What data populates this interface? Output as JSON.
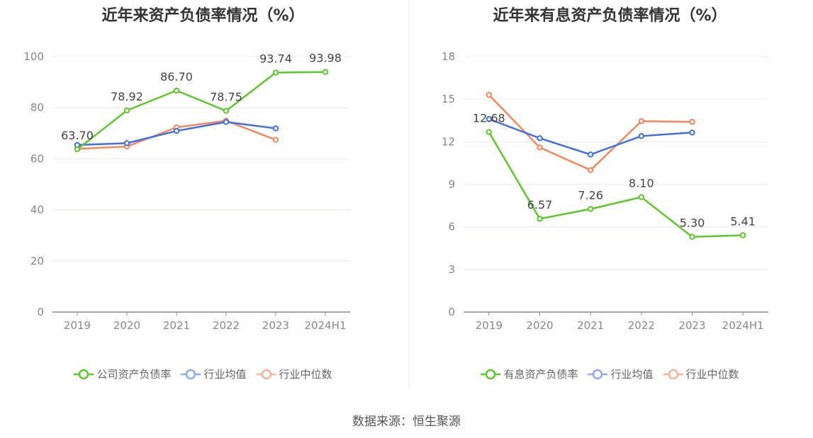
{
  "chart_data": [
    {
      "type": "line",
      "title": "近年来资产负债率情况（%）",
      "categories": [
        "2019",
        "2020",
        "2021",
        "2022",
        "2023",
        "2024H1"
      ],
      "ylim": [
        0,
        100
      ],
      "yticks": [
        "0",
        "20",
        "40",
        "60",
        "80",
        "100"
      ],
      "grid": true,
      "legend_position": "bottom",
      "series": [
        {
          "name": "公司资产负债率",
          "color": "#5cc72b",
          "values": [
            63.7,
            78.92,
            86.7,
            78.75,
            93.74,
            93.98
          ],
          "labels": [
            "63.70",
            "78.92",
            "86.70",
            "78.75",
            "93.74",
            "93.98"
          ]
        },
        {
          "name": "行业均值",
          "color": "#3f6fe0",
          "values": [
            65.4,
            66.1,
            70.9,
            74.4,
            71.9,
            null
          ]
        },
        {
          "name": "行业中位数",
          "color": "#f4885c",
          "values": [
            63.9,
            64.8,
            72.3,
            74.9,
            67.4,
            null
          ]
        }
      ]
    },
    {
      "type": "line",
      "title": "近年来有息资产负债率情况（%）",
      "categories": [
        "2019",
        "2020",
        "2021",
        "2022",
        "2023",
        "2024H1"
      ],
      "ylim": [
        0,
        18
      ],
      "yticks": [
        "0",
        "3",
        "6",
        "9",
        "12",
        "15",
        "18"
      ],
      "grid": true,
      "legend_position": "bottom",
      "series": [
        {
          "name": "有息资产负债率",
          "color": "#5cc72b",
          "values": [
            12.68,
            6.57,
            7.26,
            8.1,
            5.3,
            5.41
          ],
          "labels": [
            "12.68",
            "6.57",
            "7.26",
            "8.10",
            "5.30",
            "5.41"
          ]
        },
        {
          "name": "行业均值",
          "color": "#3f6fe0",
          "values": [
            13.6,
            12.25,
            11.1,
            12.4,
            12.65,
            null
          ]
        },
        {
          "name": "行业中位数",
          "color": "#f4885c",
          "values": [
            15.3,
            11.6,
            10.0,
            13.45,
            13.4,
            null
          ]
        }
      ]
    }
  ],
  "source": "数据来源：恒生聚源"
}
